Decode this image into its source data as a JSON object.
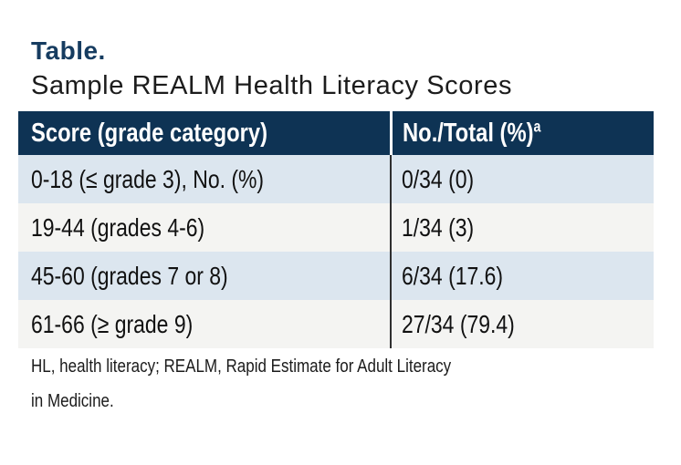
{
  "title": "Table.",
  "subtitle": "Sample REALM Health Literacy Scores",
  "table": {
    "columns": [
      {
        "label": "Score (grade category)"
      },
      {
        "label": "No./Total (%)",
        "superscript": "a"
      }
    ],
    "rows": [
      {
        "category": "0-18 (≤ grade 3), No. (%)",
        "value": "0/34 (0)"
      },
      {
        "category": "19-44 (grades 4-6)",
        "value": "1/34 (3)"
      },
      {
        "category": "45-60 (grades 7 or 8)",
        "value": "6/34 (17.6)"
      },
      {
        "category": "61-66 (≥ grade 9)",
        "value": "27/34 (79.4)"
      }
    ],
    "colors": {
      "header_background": "#0e3354",
      "header_text": "#ffffff",
      "row_blue": "#dce6ef",
      "row_offwhite": "#f4f4f2",
      "title_navy": "#163c60",
      "column_divider_body": "#2f2f2f",
      "column_divider_header": "#ffffff"
    }
  },
  "footnote": {
    "line1": "HL, health literacy; REALM, Rapid Estimate for Adult Literacy",
    "line2": "in Medicine."
  }
}
